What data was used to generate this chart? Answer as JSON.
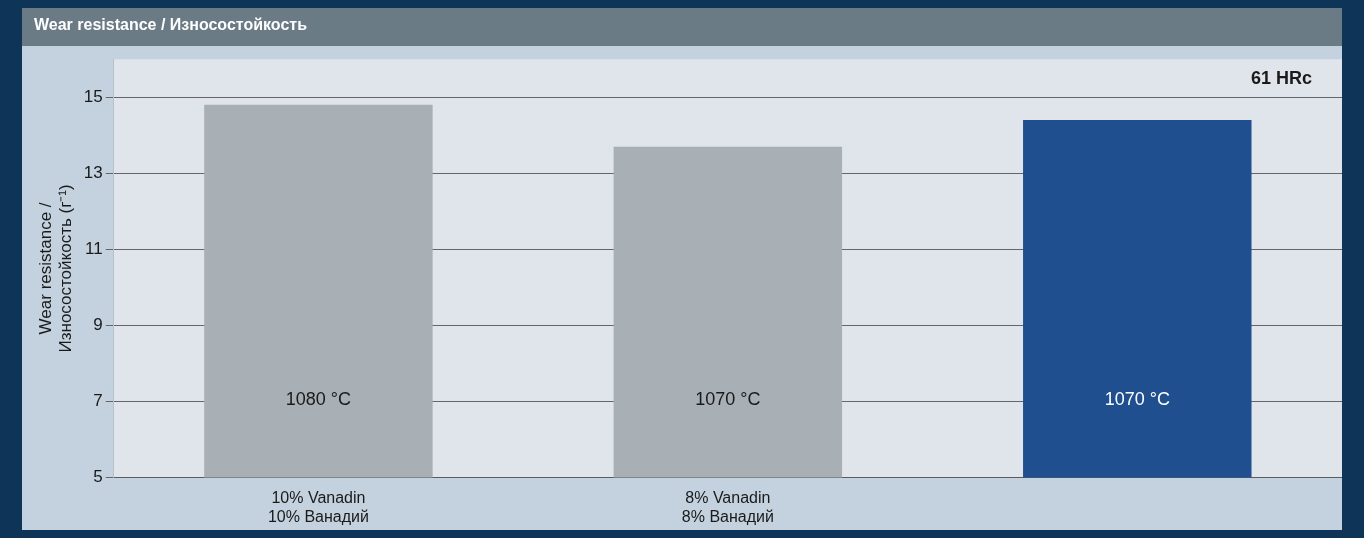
{
  "chart_data": {
    "type": "bar",
    "title": "Wear resistance / Износостойкость",
    "ylabel": "Wear resistance /\nИзносостойкость (г⁻¹)",
    "categories": [
      "10% Vanadin\n10% Ванадий",
      "8% Vanadin\n8% Ванадий",
      null
    ],
    "values": [
      14.8,
      13.7,
      14.4
    ],
    "colors": [
      "#a8b0b6",
      "#a8b0b6",
      "#1f4f8f"
    ],
    "ylim": [
      5,
      16
    ],
    "yticks": [
      5,
      7,
      9,
      11,
      13,
      15
    ],
    "grid": "y",
    "legend": false,
    "annotations": [
      "61 HRc",
      "1080 °C",
      "1070 °C",
      "1070 °C"
    ]
  }
}
